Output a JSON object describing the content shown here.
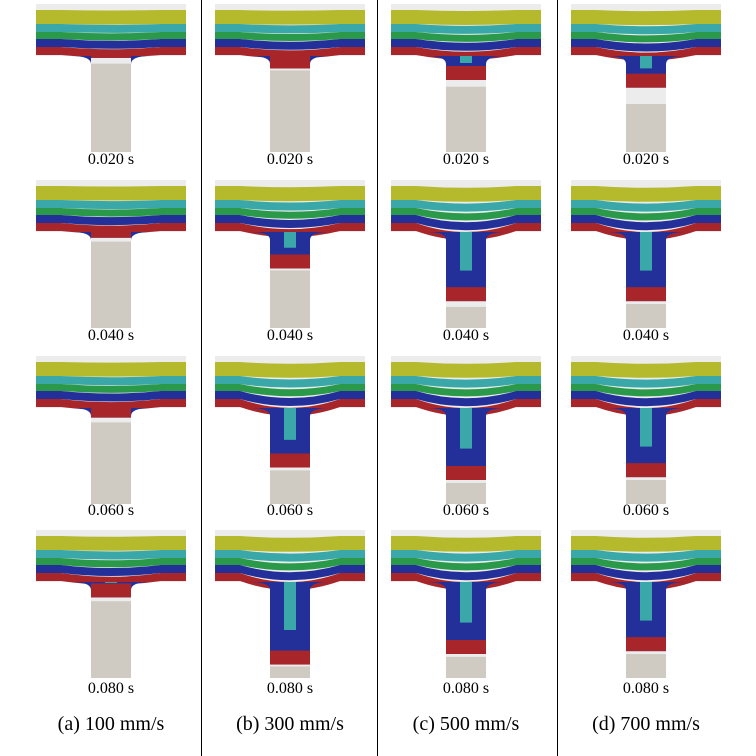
{
  "columns": [
    {
      "label": "(a) 100 mm/s",
      "frames": [
        {
          "time": "0.020 s",
          "fill_depth": 0.02,
          "piston_top": 0.08
        },
        {
          "time": "0.040 s",
          "fill_depth": 0.06,
          "piston_top": 0.1
        },
        {
          "time": "0.060 s",
          "fill_depth": 0.1,
          "piston_top": 0.15
        },
        {
          "time": "0.080 s",
          "fill_depth": 0.16,
          "piston_top": 0.2
        }
      ]
    },
    {
      "label": "(b) 300 mm/s",
      "frames": [
        {
          "time": "0.020 s",
          "fill_depth": 0.13,
          "piston_top": 0.15
        },
        {
          "time": "0.040 s",
          "fill_depth": 0.38,
          "piston_top": 0.4
        },
        {
          "time": "0.060 s",
          "fill_depth": 0.62,
          "piston_top": 0.65
        },
        {
          "time": "0.080 s",
          "fill_depth": 0.86,
          "piston_top": 0.88
        }
      ]
    },
    {
      "label": "(c) 500 mm/s",
      "frames": [
        {
          "time": "0.020 s",
          "fill_depth": 0.25,
          "piston_top": 0.32
        },
        {
          "time": "0.040 s",
          "fill_depth": 0.72,
          "piston_top": 0.78
        },
        {
          "time": "0.060 s",
          "fill_depth": 0.75,
          "piston_top": 0.78
        },
        {
          "time": "0.080 s",
          "fill_depth": 0.75,
          "piston_top": 0.78
        }
      ]
    },
    {
      "label": "(d) 700 mm/s",
      "frames": [
        {
          "time": "0.020 s",
          "fill_depth": 0.33,
          "piston_top": 0.5
        },
        {
          "time": "0.040 s",
          "fill_depth": 0.72,
          "piston_top": 0.75
        },
        {
          "time": "0.060 s",
          "fill_depth": 0.72,
          "piston_top": 0.75
        },
        {
          "time": "0.080 s",
          "fill_depth": 0.72,
          "piston_top": 0.75
        }
      ]
    }
  ],
  "colors": {
    "yellow": "#b5ba2c",
    "teal": "#3aa8a8",
    "green": "#2a9a4a",
    "blue": "#23309a",
    "red": "#a8252a",
    "piston": "#cfcbc3",
    "chamber": "#ececec"
  }
}
